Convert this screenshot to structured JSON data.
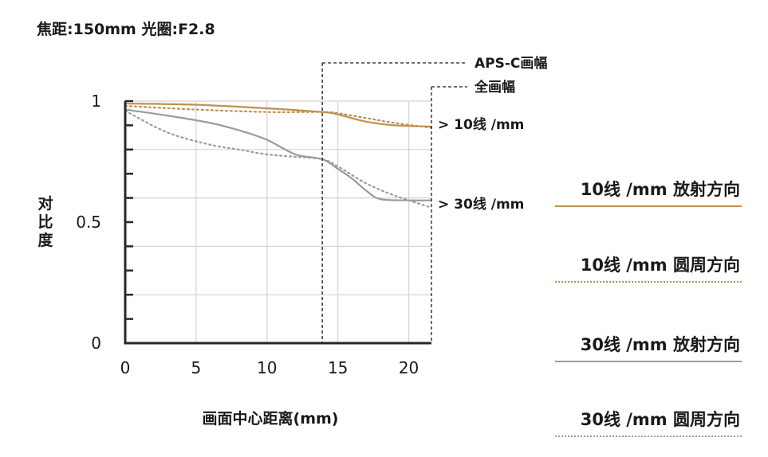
{
  "title": "焦距:150mm 光圈:F2.8",
  "chart_data": {
    "type": "line",
    "ylabel": "对比度",
    "xlabel": "画面中心距离(mm)",
    "xlim": [
      0,
      21.6
    ],
    "ylim": [
      0,
      1
    ],
    "x_ticks": [
      "0",
      "5",
      "10",
      "15",
      "20"
    ],
    "x_tick_values": [
      0,
      5,
      10,
      15,
      20
    ],
    "y_tick_labels": [
      "0",
      "0.5",
      "1"
    ],
    "y_tick_values": [
      0,
      0.5,
      1
    ],
    "grid": true,
    "markers": [
      {
        "label": "APS-C画幅",
        "x": 13.9
      },
      {
        "label": "全画幅",
        "x": 21.6
      }
    ],
    "annotations": [
      "> 10线 /mm",
      "> 30线 /mm"
    ],
    "colors": {
      "gold": "#c0904f",
      "gray": "#9b9b9b",
      "axis": "#2b2624",
      "grid": "#d3d3d3"
    },
    "series": [
      {
        "name": "10线 /mm 放射方向",
        "color": "#c0904f",
        "dash": "solid",
        "x": [
          0,
          5,
          10,
          13.9,
          15,
          17,
          19,
          21.6
        ],
        "y": [
          0.99,
          0.985,
          0.97,
          0.955,
          0.945,
          0.915,
          0.9,
          0.895
        ]
      },
      {
        "name": "10线 /mm 圆周方向",
        "color": "#c0904f",
        "dash": "dotted",
        "x": [
          0,
          5,
          10,
          13.9,
          15,
          17,
          19,
          21.6
        ],
        "y": [
          0.98,
          0.965,
          0.955,
          0.955,
          0.95,
          0.93,
          0.91,
          0.89
        ]
      },
      {
        "name": "30线 /mm 放射方向",
        "color": "#9b9b9b",
        "dash": "solid",
        "x": [
          0,
          3,
          6,
          8,
          10,
          12,
          13.9,
          15,
          16,
          17,
          18,
          20,
          21.6
        ],
        "y": [
          0.965,
          0.94,
          0.91,
          0.88,
          0.84,
          0.78,
          0.76,
          0.72,
          0.68,
          0.63,
          0.595,
          0.59,
          0.59
        ]
      },
      {
        "name": "30线 /mm 圆周方向",
        "color": "#9b9b9b",
        "dash": "dotted",
        "x": [
          0,
          3,
          6,
          8,
          10,
          12,
          13.9,
          15,
          17,
          19,
          21.6
        ],
        "y": [
          0.96,
          0.87,
          0.82,
          0.8,
          0.78,
          0.77,
          0.76,
          0.73,
          0.66,
          0.61,
          0.56
        ]
      }
    ]
  }
}
